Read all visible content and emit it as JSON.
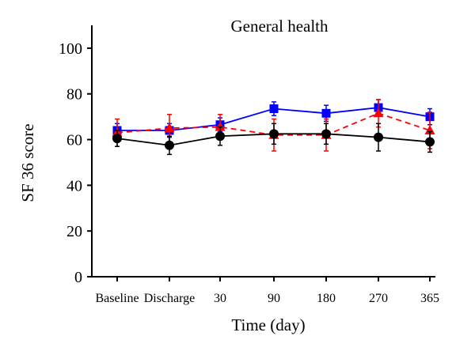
{
  "chart_data": {
    "type": "line",
    "title": "General health",
    "xlabel": "Time (day)",
    "ylabel": "SF 36 score",
    "categories": [
      "Baseline",
      "Discharge",
      "30",
      "90",
      "180",
      "270",
      "365"
    ],
    "ylim": [
      0,
      110
    ],
    "yticks": [
      0,
      20,
      40,
      60,
      80,
      100
    ],
    "grid": false,
    "legend": "none",
    "series": [
      {
        "color": "#0000ff",
        "marker": "square",
        "dash": "solid",
        "values": [
          64,
          64,
          66.5,
          73.5,
          71.5,
          74,
          70
        ],
        "errors": [
          3,
          3,
          3,
          3,
          3.5,
          3.5,
          3.5
        ]
      },
      {
        "color": "#ff0000",
        "marker": "triangle",
        "dash": "dashed",
        "values": [
          63,
          65,
          65.5,
          62,
          62,
          71.5,
          64
        ],
        "errors": [
          6,
          6,
          5.5,
          7,
          7,
          6,
          8
        ]
      },
      {
        "color": "#000000",
        "marker": "circle",
        "dash": "solid",
        "values": [
          60.5,
          57.5,
          61.5,
          62.5,
          62.5,
          61,
          59
        ],
        "errors": [
          3.5,
          4,
          4,
          4.5,
          4.5,
          6,
          4.5
        ]
      }
    ]
  }
}
